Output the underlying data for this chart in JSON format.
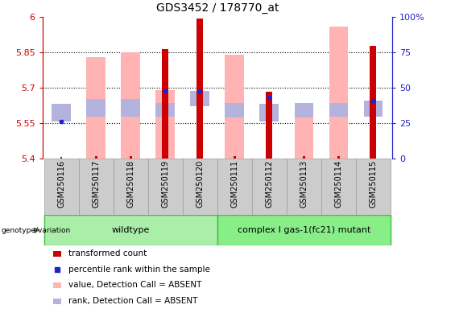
{
  "title": "GDS3452 / 178770_at",
  "samples": [
    "GSM250116",
    "GSM250117",
    "GSM250118",
    "GSM250119",
    "GSM250120",
    "GSM250111",
    "GSM250112",
    "GSM250113",
    "GSM250114",
    "GSM250115"
  ],
  "transformed_count": [
    5.405,
    5.408,
    5.408,
    5.865,
    5.993,
    5.408,
    5.683,
    5.408,
    5.408,
    5.878
  ],
  "has_red_bar": [
    false,
    false,
    false,
    true,
    true,
    false,
    true,
    false,
    false,
    true
  ],
  "pink_top": [
    null,
    5.83,
    5.85,
    5.69,
    null,
    5.84,
    null,
    5.62,
    5.96,
    null
  ],
  "has_pink_bar": [
    false,
    true,
    true,
    true,
    false,
    true,
    false,
    true,
    true,
    false
  ],
  "lavender_top": [
    5.63,
    5.65,
    5.65,
    5.635,
    5.685,
    5.635,
    5.63,
    5.635,
    5.635,
    5.645
  ],
  "lavender_bot": [
    5.555,
    5.575,
    5.575,
    5.578,
    5.62,
    5.572,
    5.555,
    5.572,
    5.578,
    5.578
  ],
  "has_lavender": [
    true,
    true,
    true,
    true,
    true,
    true,
    true,
    true,
    true,
    true
  ],
  "blue_dot_y": [
    5.555,
    null,
    null,
    5.685,
    5.685,
    null,
    5.66,
    null,
    null,
    5.645
  ],
  "has_blue_dot": [
    true,
    false,
    false,
    true,
    true,
    false,
    true,
    false,
    false,
    true
  ],
  "ymin": 5.4,
  "ymax": 6.0,
  "yticks": [
    5.4,
    5.55,
    5.7,
    5.85,
    6.0
  ],
  "yticklabels": [
    "5.4",
    "5.55",
    "5.7",
    "5.85",
    "6"
  ],
  "right_yticks": [
    0,
    25,
    50,
    75,
    100
  ],
  "right_yticklabels": [
    "0",
    "25",
    "50",
    "75",
    "100%"
  ],
  "left_axis_color": "#cc0000",
  "right_axis_color": "#2222cc",
  "pink_color": "#ffb3b3",
  "lavender_color": "#b3b3dd",
  "red_color": "#cc0000",
  "blue_color": "#2222cc",
  "wildtype_color": "#aaeeaa",
  "mutant_color": "#88ee88",
  "gray_tick_bg": "#cccccc",
  "legend_labels": [
    "transformed count",
    "percentile rank within the sample",
    "value, Detection Call = ABSENT",
    "rank, Detection Call = ABSENT"
  ],
  "legend_colors": [
    "#cc0000",
    "#2222cc",
    "#ffb3b3",
    "#b3b3dd"
  ]
}
